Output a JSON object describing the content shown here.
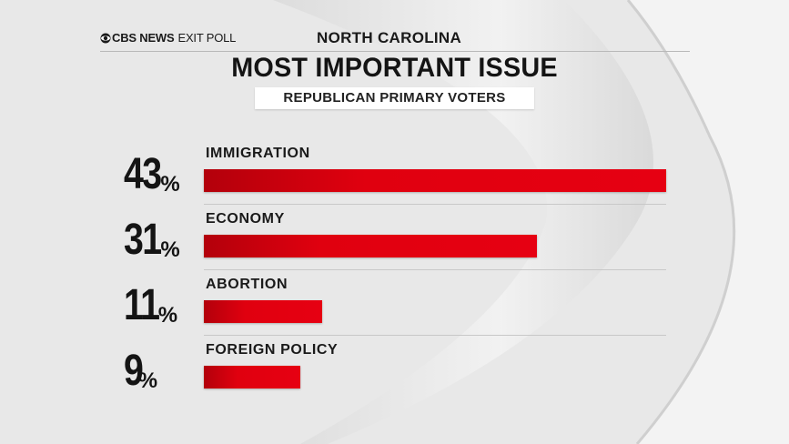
{
  "header": {
    "brand_cbs": "CBS NEWS",
    "brand_rest": "EXIT POLL",
    "state": "NORTH CAROLINA"
  },
  "title": "MOST IMPORTANT ISSUE",
  "subtitle": "REPUBLICAN PRIMARY VOTERS",
  "colors": {
    "bar": "#e60012",
    "text": "#141414",
    "background": "#e9e9e9"
  },
  "chart_data": {
    "type": "bar",
    "orientation": "horizontal",
    "title": "MOST IMPORTANT ISSUE",
    "subtitle": "REPUBLICAN PRIMARY VOTERS",
    "categories": [
      "IMMIGRATION",
      "ECONOMY",
      "ABORTION",
      "FOREIGN POLICY"
    ],
    "values": [
      43,
      31,
      11,
      9
    ],
    "value_labels": [
      "43",
      "31",
      "11",
      "9"
    ],
    "unit": "%",
    "xlim": [
      0,
      43
    ]
  }
}
